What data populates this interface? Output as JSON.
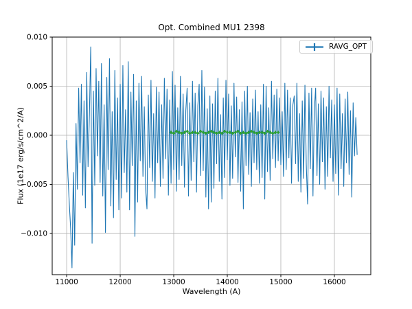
{
  "figure": {
    "title": "Opt. Combined MU1 2398",
    "xlabel": "Wavelength (A)",
    "ylabel": "Flux (1e17 erg/s/cm^2/A)",
    "background": "#ffffff"
  },
  "legend": {
    "position": "upper right",
    "entries": [
      {
        "label": "RAVG_OPT",
        "color": "#1f77b4",
        "marker": "errorbar"
      }
    ]
  },
  "style": {
    "grid_color": "#b0b0b0",
    "spine_color": "#000000",
    "tick_color": "#000000",
    "text_color": "#000000"
  },
  "chart_data": {
    "type": "line",
    "title": "Opt. Combined MU1 2398",
    "xlabel": "Wavelength (A)",
    "ylabel": "Flux (1e17 erg/s/cm^2/A)",
    "grid": true,
    "legend_position": "upper right",
    "xlim": [
      10730,
      16680
    ],
    "ylim": [
      -0.0142,
      0.01
    ],
    "x_ticks": [
      11000,
      12000,
      13000,
      14000,
      15000,
      16000
    ],
    "x_tick_labels": [
      "11000",
      "12000",
      "13000",
      "14000",
      "15000",
      "16000"
    ],
    "y_ticks": [
      0.01,
      0.005,
      0.0,
      -0.005,
      -0.01
    ],
    "y_tick_labels": [
      "0.010",
      "0.005",
      "0.000",
      "−0.005",
      "−0.010"
    ],
    "series": [
      {
        "name": "RAVG_OPT",
        "color": "#1f77b4",
        "line_width": 1.1,
        "line_opacity": 1,
        "marker": "none",
        "x_start": 11000,
        "x_step": 25,
        "values": [
          -0.0005,
          -0.0042,
          -0.007,
          -0.0095,
          -0.0135,
          -0.0038,
          -0.0112,
          0.0012,
          -0.0055,
          0.0048,
          -0.0028,
          0.0052,
          -0.0061,
          0.0035,
          -0.0074,
          0.0064,
          -0.0032,
          0.0021,
          0.009,
          -0.011,
          0.0045,
          -0.0051,
          0.0068,
          -0.0021,
          0.0055,
          -0.0048,
          0.0073,
          -0.0062,
          0.0031,
          -0.0099,
          0.0059,
          -0.0035,
          0.0078,
          -0.0072,
          0.0024,
          -0.0084,
          0.0066,
          -0.0045,
          0.0038,
          -0.0076,
          0.0052,
          -0.0064,
          0.0071,
          -0.0038,
          0.0026,
          -0.0058,
          0.0075,
          -0.0076,
          0.0044,
          -0.0031,
          0.0062,
          -0.0103,
          0.0035,
          -0.0068,
          0.0053,
          -0.0026,
          0.006,
          -0.0042,
          0.0029,
          -0.0055,
          -0.0075,
          0.0041,
          -0.0033,
          0.0056,
          -0.0047,
          0.0022,
          -0.0064,
          0.0049,
          -0.0028,
          0.0044,
          -0.0052,
          0.0031,
          -0.0044,
          0.0058,
          -0.0024,
          0.0047,
          -0.0061,
          0.0036,
          -0.0049,
          0.0065,
          -0.0035,
          0.0051,
          -0.0057,
          0.0028,
          -0.0045,
          0.006,
          -0.0031,
          0.0042,
          -0.0053,
          0.0025,
          0.0048,
          -0.0062,
          0.0033,
          -0.0046,
          0.0055,
          -0.0027,
          0.0043,
          -0.0058,
          0.003,
          0.0052,
          -0.0041,
          0.0066,
          -0.0036,
          0.0049,
          -0.0063,
          0.0027,
          -0.0075,
          0.004,
          -0.0068,
          0.0032,
          -0.0054,
          0.0045,
          -0.0029,
          0.0058,
          -0.0047,
          0.0021,
          -0.0065,
          0.0038,
          -0.0043,
          0.0056,
          -0.0025,
          0.0042,
          -0.0051,
          0.003,
          -0.0044,
          0.0053,
          -0.0022,
          0.0039,
          -0.0048,
          0.0026,
          -0.0057,
          0.0034,
          -0.0075,
          0.0045,
          -0.0031,
          0.005,
          -0.004,
          0.0023,
          -0.0052,
          0.0037,
          -0.0028,
          0.0046,
          -0.0035,
          0.0024,
          -0.0049,
          0.0031,
          -0.0043,
          0.0052,
          -0.0065,
          0.005,
          -0.0037,
          0.0028,
          -0.0046,
          0.0055,
          -0.0024,
          0.0041,
          -0.0033,
          0.0047,
          -0.0026,
          0.0038,
          -0.003,
          0.0024,
          -0.0042,
          0.0053,
          -0.0035,
          0.0046,
          -0.0023,
          0.0038,
          -0.0049,
          0.0031,
          0.004,
          -0.0029,
          0.0053,
          -0.0047,
          0.0022,
          -0.0058,
          0.0035,
          -0.0044,
          0.0051,
          -0.003,
          -0.007,
          0.0043,
          -0.0034,
          0.0048,
          -0.0062,
          0.0026,
          0.0048,
          -0.0041,
          0.0032,
          -0.005,
          0.0045,
          -0.0027,
          0.0038,
          -0.0055,
          0.0029,
          -0.0042,
          0.005,
          -0.0023,
          0.0036,
          -0.0047,
          0.0031,
          -0.0039,
          0.0048,
          -0.0061,
          0.0042,
          -0.0034,
          0.0022,
          -0.0052,
          0.0037,
          -0.0028,
          0.0044,
          -0.004,
          0.0025,
          -0.0063,
          0.0033,
          -0.0021,
          0.0018,
          -0.002
        ]
      },
      {
        "name": "unlabeled-green-reference",
        "color": "#2ca02c",
        "line_width": 1.6,
        "line_opacity": 0.45,
        "marker": "plus",
        "x_start": 12950,
        "x_step": 50,
        "values": [
          0.0003,
          0.0002,
          0.0004,
          0.0003,
          0.0002,
          0.0003,
          0.0004,
          0.0002,
          0.0003,
          0.0003,
          0.0002,
          0.0004,
          0.0003,
          0.0002,
          0.0003,
          0.0004,
          0.0003,
          0.0002,
          0.0003,
          0.0002,
          0.0004,
          0.0003,
          0.0003,
          0.0002,
          0.0003,
          0.0004,
          0.0002,
          0.0003,
          0.0002,
          0.0003,
          0.0004,
          0.0003,
          0.0002,
          0.0003,
          0.0003,
          0.0002,
          0.0004,
          0.0003,
          0.0002,
          0.0003,
          0.0003
        ]
      }
    ]
  }
}
